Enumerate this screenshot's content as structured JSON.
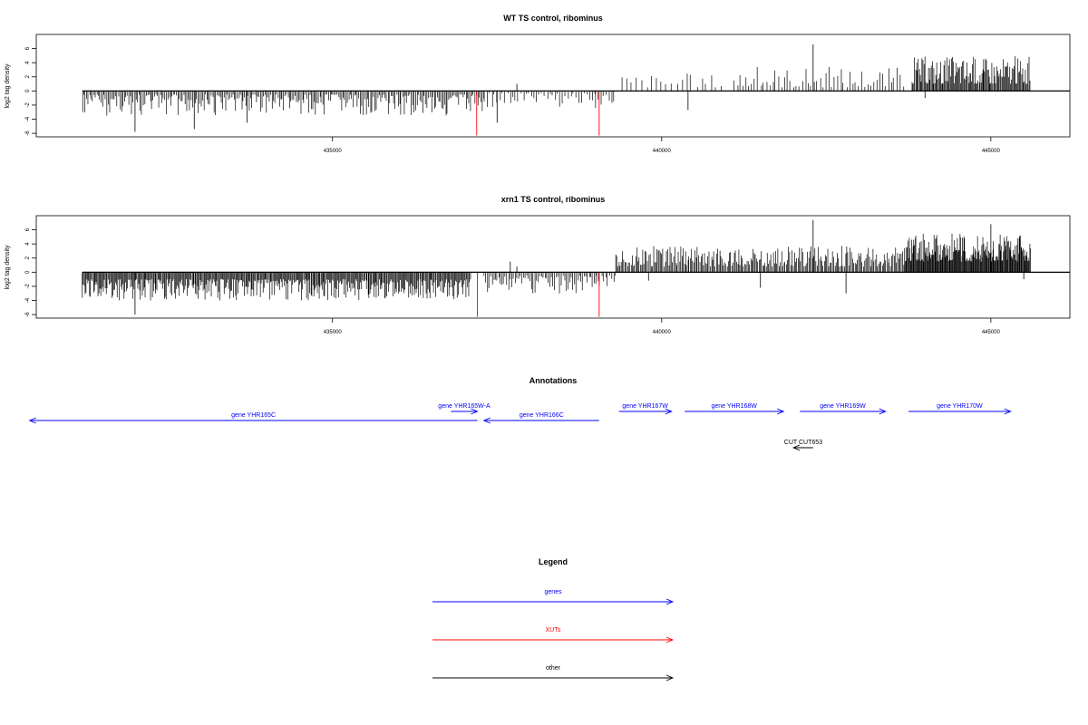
{
  "chart_data": [
    {
      "type": "bar",
      "title": "WT TS control, ribominus",
      "ylabel": "log2 tag density",
      "xlim": [
        430500,
        446200
      ],
      "ylim": [
        -6.5,
        8
      ],
      "x_ticks": [
        435000,
        440000,
        445000
      ],
      "y_ticks": [
        -6,
        -4,
        -2,
        0,
        2,
        4,
        6
      ],
      "baseline_x": [
        431200,
        446200
      ],
      "series": [
        {
          "color": "#000000",
          "profile": [
            {
              "x_range": [
                431200,
                437300
              ],
              "sign": -1,
              "min": 0.5,
              "max": 3.5,
              "step": 22
            },
            {
              "x_range": [
                437300,
                439000
              ],
              "sign": -1,
              "min": 0.3,
              "max": 2.5,
              "step": 40
            },
            {
              "x_range": [
                439000,
                439300
              ],
              "sign": -1,
              "min": 0.5,
              "max": 2.5,
              "step": 40
            },
            {
              "x_range": [
                439400,
                440900
              ],
              "sign": 1,
              "min": 0.5,
              "max": 2.5,
              "step": 75
            },
            {
              "x_range": [
                441100,
                443700
              ],
              "sign": 1,
              "min": 0.5,
              "max": 3.5,
              "step": 45
            },
            {
              "x_range": [
                443800,
                445600
              ],
              "sign": 1,
              "min": 1.0,
              "max": 5.0,
              "step": 14
            }
          ],
          "spikes": [
            {
              "x": 432000,
              "y": -5.8
            },
            {
              "x": 432900,
              "y": -5.4
            },
            {
              "x": 433700,
              "y": -4.5
            },
            {
              "x": 437500,
              "y": -4.5
            },
            {
              "x": 437800,
              "y": 1.0
            },
            {
              "x": 440400,
              "y": -2.7
            },
            {
              "x": 442300,
              "y": 6.6
            },
            {
              "x": 444000,
              "y": -1.0
            }
          ]
        },
        {
          "color": "#ff0000",
          "spikes": [
            {
              "x": 437190,
              "y": -6.3
            },
            {
              "x": 439050,
              "y": -6.3
            }
          ]
        }
      ]
    },
    {
      "type": "bar",
      "title": "xrn1 TS control, ribominus",
      "ylabel": "log2 tag density",
      "xlim": [
        430500,
        446200
      ],
      "ylim": [
        -6.5,
        8
      ],
      "x_ticks": [
        435000,
        440000,
        445000
      ],
      "y_ticks": [
        -6,
        -4,
        -2,
        0,
        2,
        4,
        6
      ],
      "baseline_x": [
        431200,
        446200
      ],
      "series": [
        {
          "color": "#000000",
          "profile": [
            {
              "x_range": [
                431200,
                437100
              ],
              "sign": -1,
              "min": 1.0,
              "max": 4.0,
              "step": 14
            },
            {
              "x_range": [
                437300,
                439000
              ],
              "sign": -1,
              "min": 0.5,
              "max": 3.0,
              "step": 25
            },
            {
              "x_range": [
                439000,
                439300
              ],
              "sign": -1,
              "min": 0.5,
              "max": 2.0,
              "step": 30
            },
            {
              "x_range": [
                439300,
                443700
              ],
              "sign": 1,
              "min": 0.8,
              "max": 3.8,
              "step": 18
            },
            {
              "x_range": [
                443700,
                445600
              ],
              "sign": 1,
              "min": 1.5,
              "max": 5.5,
              "step": 10
            }
          ],
          "spikes": [
            {
              "x": 432000,
              "y": -6.0
            },
            {
              "x": 437700,
              "y": 1.5
            },
            {
              "x": 437800,
              "y": 0.8
            },
            {
              "x": 439800,
              "y": -1.2
            },
            {
              "x": 441500,
              "y": -2.2
            },
            {
              "x": 442300,
              "y": 7.4
            },
            {
              "x": 442800,
              "y": -3.0
            },
            {
              "x": 445000,
              "y": 6.8
            },
            {
              "x": 445500,
              "y": -1.0
            }
          ]
        },
        {
          "color": "#ff0000",
          "spikes": [
            {
              "x": 437200,
              "y": -6.3
            },
            {
              "x": 439050,
              "y": -6.3
            }
          ]
        }
      ]
    }
  ],
  "annotations": {
    "title": "Annotations",
    "features": [
      {
        "label": "gene YHR165C",
        "start": 430400,
        "end": 437200,
        "strand": "-",
        "row": 1,
        "type": "gene"
      },
      {
        "label": "gene YHR165W-A",
        "start": 436800,
        "end": 437200,
        "strand": "+",
        "row": 0,
        "type": "gene"
      },
      {
        "label": "gene YHR166C",
        "start": 437300,
        "end": 439050,
        "strand": "-",
        "row": 1,
        "type": "gene"
      },
      {
        "label": "gene YHR167W",
        "start": 439350,
        "end": 440150,
        "strand": "+",
        "row": 0,
        "type": "gene"
      },
      {
        "label": "gene YHR168W",
        "start": 440350,
        "end": 441850,
        "strand": "+",
        "row": 0,
        "type": "gene"
      },
      {
        "label": "gene YHR169W",
        "start": 442100,
        "end": 443400,
        "strand": "+",
        "row": 0,
        "type": "gene"
      },
      {
        "label": "gene YHR170W",
        "start": 443750,
        "end": 445300,
        "strand": "+",
        "row": 0,
        "type": "gene"
      },
      {
        "label": "CUT CUT653",
        "start": 442000,
        "end": 442300,
        "strand": "-",
        "row": 4,
        "type": "other"
      }
    ]
  },
  "legend": {
    "title": "Legend",
    "items": [
      {
        "label": "genes",
        "color": "#0000ff"
      },
      {
        "label": "XUTs",
        "color": "#ff0000"
      },
      {
        "label": "other",
        "color": "#000000"
      }
    ]
  }
}
